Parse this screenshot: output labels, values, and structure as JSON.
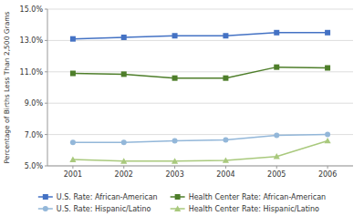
{
  "chart_data": {
    "type": "line",
    "y_label": "Percentage of Births Less Than 2,500 Grams",
    "x": [
      2001,
      2002,
      2003,
      2004,
      2005,
      2006
    ],
    "xlim": [
      2000.5,
      2006.5
    ],
    "xticks": [
      2001,
      2002,
      2003,
      2004,
      2005,
      2006
    ],
    "ylim": [
      5.0,
      15.0
    ],
    "yticks": [
      {
        "value": 5.0,
        "label": "5.0%"
      },
      {
        "value": 7.0,
        "label": "7.0%"
      },
      {
        "value": 9.0,
        "label": "9.0%"
      },
      {
        "value": 11.0,
        "label": "11.0%"
      },
      {
        "value": 13.0,
        "label": "13.0%"
      },
      {
        "value": 15.0,
        "label": "15.0%"
      }
    ],
    "grid": true,
    "legend": "bottom",
    "series": [
      {
        "name": "U.S. Rate: African-American",
        "color": "#4472C4",
        "marker": "square",
        "values": [
          13.1,
          13.2,
          13.3,
          13.3,
          13.5,
          13.5
        ]
      },
      {
        "name": "Health Center Rate: African-American",
        "color": "#4E7E2A",
        "marker": "square",
        "values": [
          10.9,
          10.85,
          10.6,
          10.6,
          11.3,
          11.25
        ]
      },
      {
        "name": "U.S. Rate: Hispanic/Latino",
        "color": "#93B7D9",
        "marker": "circle",
        "values": [
          6.5,
          6.5,
          6.6,
          6.65,
          6.95,
          7.0
        ]
      },
      {
        "name": "Health Center Rate: Hispanic/Latino",
        "color": "#A9C97D",
        "marker": "triangle",
        "values": [
          5.4,
          5.3,
          5.3,
          5.35,
          5.6,
          6.6
        ]
      }
    ]
  }
}
